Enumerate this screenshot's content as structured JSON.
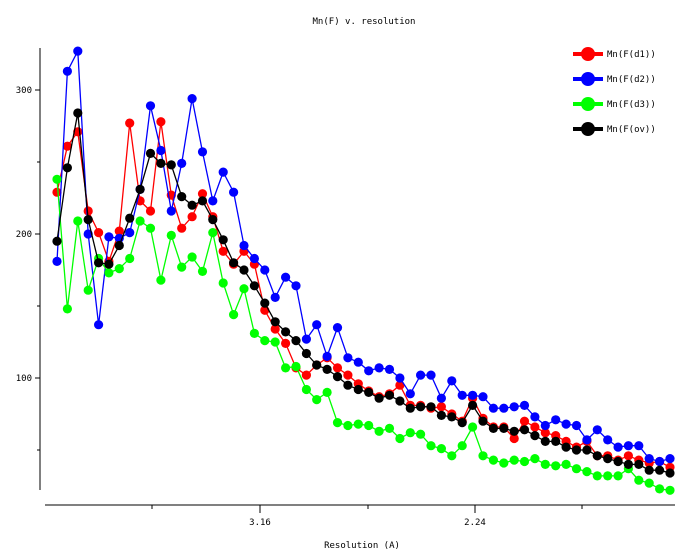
{
  "chart_data": {
    "type": "line",
    "title": "Mn(F) v. resolution",
    "xlabel": "Resolution (A)",
    "ylabel": "",
    "x_tick_labels": [
      "3.16",
      "2.24"
    ],
    "y_tick_labels": [
      "100",
      "200",
      "300"
    ],
    "y_ticks": [
      100,
      200,
      300
    ],
    "ylim": [
      20,
      330
    ],
    "legend_position": "top-right",
    "grid": false,
    "series": [
      {
        "name": "Mn(F(d1))",
        "color": "#ff0000",
        "values": [
          229,
          261,
          271,
          216,
          201,
          181,
          202,
          277,
          223,
          216,
          278,
          227,
          204,
          212,
          228,
          212,
          188,
          179,
          188,
          179,
          147,
          134,
          124,
          107,
          102,
          109,
          114,
          107,
          102,
          96,
          91,
          87,
          89,
          95,
          81,
          81,
          79,
          80,
          75,
          70,
          86,
          72,
          66,
          66,
          58,
          70,
          66,
          62,
          60,
          56,
          52,
          56,
          46,
          46,
          43,
          46,
          43,
          41,
          42,
          38
        ]
      },
      {
        "name": "Mn(F(d2))",
        "color": "#0000ff",
        "values": [
          181,
          313,
          327,
          200,
          137,
          198,
          197,
          201,
          231,
          289,
          258,
          216,
          249,
          294,
          257,
          223,
          243,
          229,
          192,
          183,
          175,
          156,
          170,
          164,
          127,
          137,
          115,
          135,
          114,
          111,
          105,
          107,
          106,
          100,
          89,
          102,
          102,
          86,
          98,
          88,
          88,
          87,
          79,
          79,
          80,
          81,
          73,
          67,
          71,
          68,
          67,
          57,
          64,
          57,
          52,
          53,
          53,
          44,
          42,
          44
        ]
      },
      {
        "name": "Mn(F(d3))",
        "color": "#00ff00",
        "values": [
          238,
          148,
          209,
          161,
          183,
          173,
          176,
          183,
          209,
          204,
          168,
          199,
          177,
          184,
          174,
          201,
          166,
          144,
          162,
          131,
          126,
          125,
          107,
          108,
          92,
          85,
          90,
          69,
          67,
          68,
          67,
          63,
          65,
          58,
          62,
          61,
          53,
          51,
          46,
          53,
          66,
          46,
          43,
          41,
          43,
          42,
          44,
          40,
          39,
          40,
          37,
          35,
          32,
          32,
          32,
          37,
          29,
          27,
          23,
          22
        ]
      },
      {
        "name": "Mn(F(ov))",
        "color": "#000000",
        "values": [
          195,
          246,
          284,
          210,
          180,
          179,
          192,
          211,
          231,
          256,
          249,
          248,
          226,
          220,
          223,
          210,
          196,
          180,
          175,
          164,
          152,
          139,
          132,
          126,
          117,
          109,
          106,
          101,
          95,
          92,
          90,
          86,
          88,
          84,
          79,
          80,
          80,
          74,
          73,
          69,
          81,
          70,
          65,
          65,
          63,
          64,
          60,
          56,
          56,
          52,
          50,
          50,
          46,
          44,
          42,
          40,
          40,
          36,
          36,
          34
        ]
      }
    ]
  }
}
